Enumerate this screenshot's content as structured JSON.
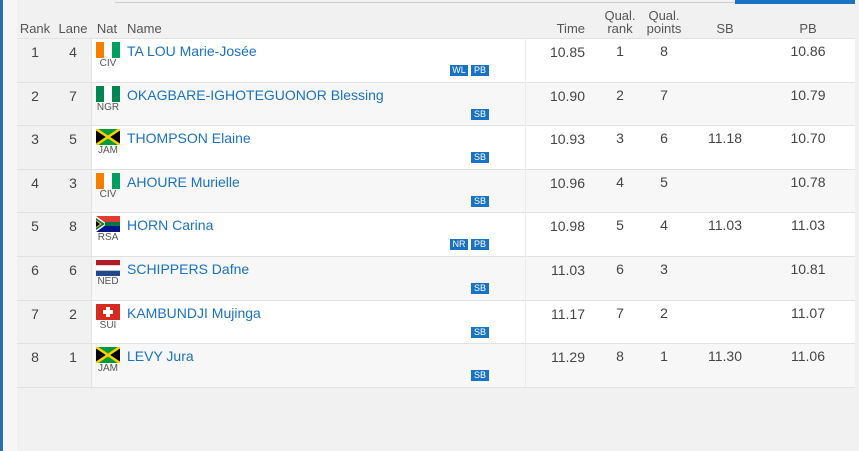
{
  "header": {
    "rank": "Rank",
    "lane": "Lane",
    "nat": "Nat",
    "name": "Name",
    "time": "Time",
    "qual_rank": "Qual. rank",
    "qual_points": "Qual. points",
    "sb": "SB",
    "pb": "PB"
  },
  "rows": [
    {
      "rank": "1",
      "lane": "4",
      "nat": "CIV",
      "name": "TA LOU Marie-Josée",
      "time": "10.85",
      "qual_rank": "1",
      "qual_points": "8",
      "sb": "",
      "pb": "10.86",
      "badges": [
        "WL",
        "PB"
      ]
    },
    {
      "rank": "2",
      "lane": "7",
      "nat": "NGR",
      "name": "OKAGBARE-IGHOTEGUONOR Blessing",
      "time": "10.90",
      "qual_rank": "2",
      "qual_points": "7",
      "sb": "",
      "pb": "10.79",
      "badges": [
        "SB"
      ]
    },
    {
      "rank": "3",
      "lane": "5",
      "nat": "JAM",
      "name": "THOMPSON Elaine",
      "time": "10.93",
      "qual_rank": "3",
      "qual_points": "6",
      "sb": "11.18",
      "pb": "10.70",
      "badges": [
        "SB"
      ]
    },
    {
      "rank": "4",
      "lane": "3",
      "nat": "CIV",
      "name": "AHOURE Murielle",
      "time": "10.96",
      "qual_rank": "4",
      "qual_points": "5",
      "sb": "",
      "pb": "10.78",
      "badges": [
        "SB"
      ]
    },
    {
      "rank": "5",
      "lane": "8",
      "nat": "RSA",
      "name": "HORN Carina",
      "time": "10.98",
      "qual_rank": "5",
      "qual_points": "4",
      "sb": "11.03",
      "pb": "11.03",
      "badges": [
        "NR",
        "PB"
      ]
    },
    {
      "rank": "6",
      "lane": "6",
      "nat": "NED",
      "name": "SCHIPPERS Dafne",
      "time": "11.03",
      "qual_rank": "6",
      "qual_points": "3",
      "sb": "",
      "pb": "10.81",
      "badges": [
        "SB"
      ]
    },
    {
      "rank": "7",
      "lane": "2",
      "nat": "SUI",
      "name": "KAMBUNDJI Mujinga",
      "time": "11.17",
      "qual_rank": "7",
      "qual_points": "2",
      "sb": "",
      "pb": "11.07",
      "badges": [
        "SB"
      ]
    },
    {
      "rank": "8",
      "lane": "1",
      "nat": "JAM",
      "name": "LEVY Jura",
      "time": "11.29",
      "qual_rank": "8",
      "qual_points": "1",
      "sb": "11.30",
      "pb": "11.06",
      "badges": [
        "SB"
      ]
    }
  ]
}
